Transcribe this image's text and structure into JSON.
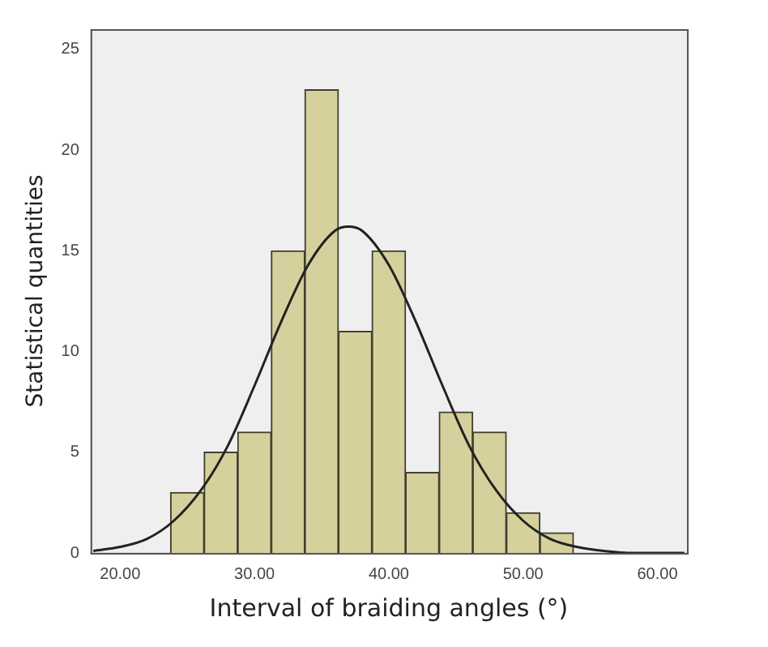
{
  "chart_data": {
    "type": "histogram",
    "xlabel": "Interval of braiding angles (°)",
    "ylabel": "Statistical quantities",
    "xlim": [
      17.8,
      62.2
    ],
    "xticks": [
      {
        "value": 20,
        "label": "20.00"
      },
      {
        "value": 30,
        "label": "30.00"
      },
      {
        "value": 40,
        "label": "40.00"
      },
      {
        "value": 50,
        "label": "50.00"
      },
      {
        "value": 60,
        "label": "60.00"
      }
    ],
    "ylim": [
      0,
      26
    ],
    "yticks": [
      0,
      5,
      10,
      15,
      20,
      25
    ],
    "grid": false,
    "legend": false,
    "series": [
      {
        "type": "histogram",
        "color": "#d6d19c",
        "bins": [
          23.75,
          26.25,
          28.75,
          31.25,
          33.75,
          36.25,
          38.75,
          41.25,
          43.75,
          46.25,
          48.75,
          51.25,
          53.75
        ],
        "values": [
          3,
          5,
          6,
          15,
          23,
          11,
          15,
          4,
          7,
          6,
          2,
          1
        ]
      },
      {
        "type": "line",
        "color": "#222222",
        "marker": "none",
        "x": [
          18,
          20,
          22,
          24,
          26,
          28,
          30,
          32,
          34,
          36,
          37,
          38,
          40,
          42,
          44,
          46,
          48,
          50,
          52,
          54,
          56,
          58,
          60,
          62
        ],
        "values": [
          0.1,
          0.3,
          0.7,
          1.6,
          3.1,
          5.3,
          8.3,
          11.5,
          14.3,
          16.0,
          16.2,
          16.0,
          14.3,
          11.5,
          8.3,
          5.3,
          3.1,
          1.6,
          0.7,
          0.3,
          0.1,
          0.0,
          0.0,
          0.0
        ]
      }
    ]
  }
}
